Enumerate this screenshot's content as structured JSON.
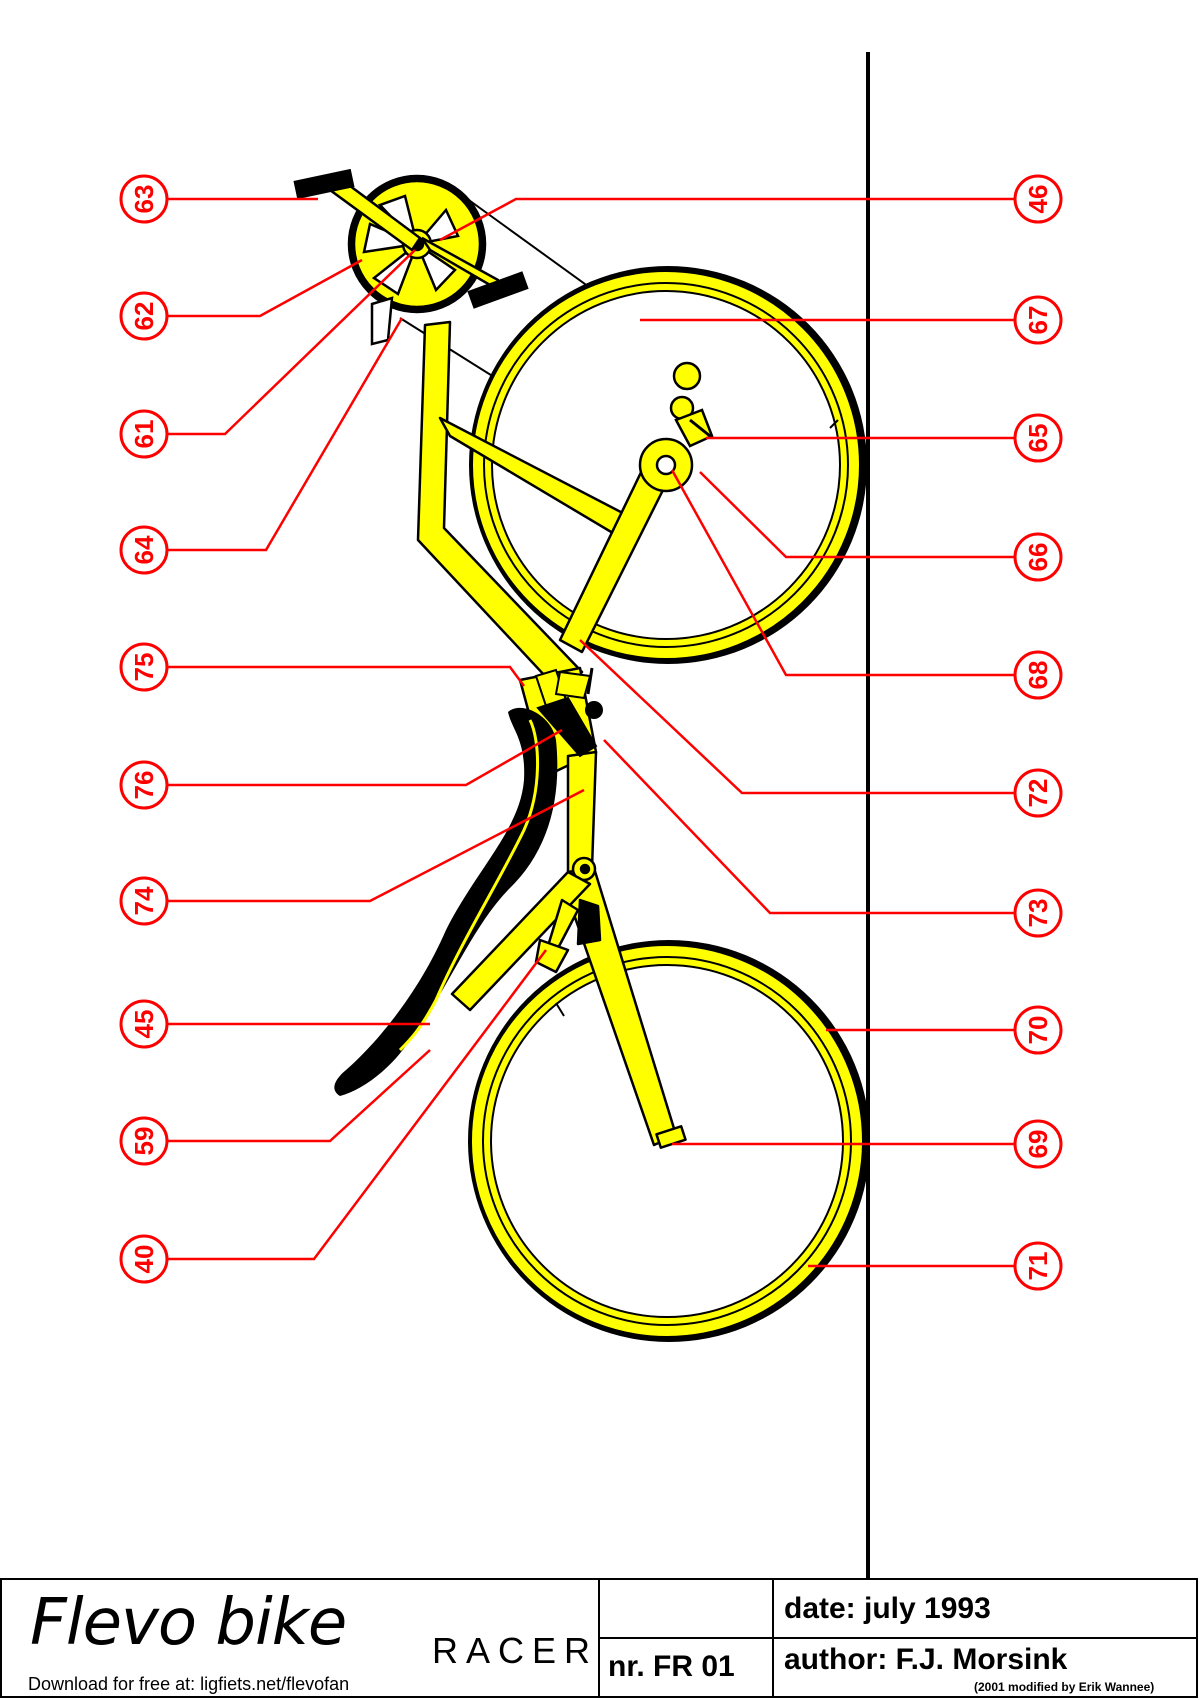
{
  "callouts": {
    "left": [
      "63",
      "62",
      "61",
      "64",
      "75",
      "76",
      "74",
      "45",
      "59",
      "40"
    ],
    "right": [
      "46",
      "67",
      "65",
      "66",
      "68",
      "72",
      "73",
      "70",
      "69",
      "71"
    ]
  },
  "colors": {
    "frame_yellow": "#ffff00",
    "callout_red": "#ff0000",
    "outline_black": "#000000"
  },
  "title_block": {
    "brand": "Flevo bike",
    "model": "RACER",
    "download": "Download for free at: ligfiets.net/flevofan",
    "number": "nr. FR  01",
    "date": "date: july 1993",
    "author": "author: F.J. Morsink",
    "modified": "(2001 modified by Erik Wannee)"
  }
}
